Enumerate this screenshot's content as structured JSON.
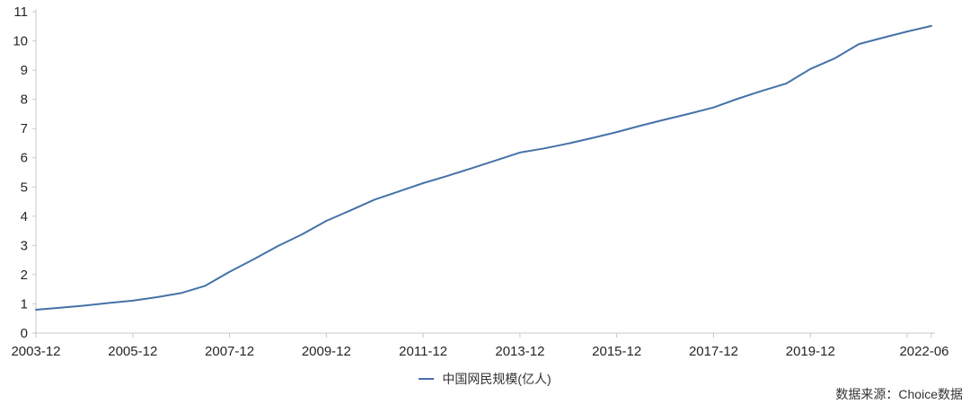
{
  "chart_data": {
    "type": "line",
    "title": "",
    "xlabel": "",
    "ylabel": "",
    "x": [
      "2003-12",
      "2004-06",
      "2004-12",
      "2005-06",
      "2005-12",
      "2006-06",
      "2006-12",
      "2007-06",
      "2007-12",
      "2008-06",
      "2008-12",
      "2009-06",
      "2009-12",
      "2010-06",
      "2010-12",
      "2011-06",
      "2011-12",
      "2012-06",
      "2012-12",
      "2013-06",
      "2013-12",
      "2014-06",
      "2014-12",
      "2015-06",
      "2015-12",
      "2016-06",
      "2016-12",
      "2017-06",
      "2017-12",
      "2018-06",
      "2018-12",
      "2019-06",
      "2019-12",
      "2020-06",
      "2020-12",
      "2021-06",
      "2021-12",
      "2022-06"
    ],
    "series": [
      {
        "name": "中国网民规模(亿人)",
        "color": "#4572a7",
        "values": [
          0.8,
          0.87,
          0.94,
          1.03,
          1.11,
          1.23,
          1.37,
          1.62,
          2.1,
          2.53,
          2.98,
          3.38,
          3.84,
          4.2,
          4.57,
          4.85,
          5.13,
          5.38,
          5.64,
          5.91,
          6.18,
          6.32,
          6.49,
          6.68,
          6.88,
          7.1,
          7.31,
          7.51,
          7.72,
          8.02,
          8.29,
          8.54,
          9.04,
          9.4,
          9.89,
          10.11,
          10.32,
          10.51
        ]
      }
    ],
    "ylim": [
      0,
      11
    ],
    "y_tick_interval": 1,
    "x_tick_label_indices": [
      0,
      4,
      8,
      12,
      16,
      20,
      24,
      28,
      32,
      37
    ],
    "x_extra_tick_indices": [
      36
    ],
    "grid": false,
    "legend_position": "bottom-center"
  },
  "legend": {
    "label": "中国网民规模(亿人)"
  },
  "source_note": "数据来源：Choice数据",
  "colors": {
    "line": "#4572a7",
    "axis": "#c9c9c9",
    "text": "#262626",
    "secondary_text": "#333333"
  }
}
